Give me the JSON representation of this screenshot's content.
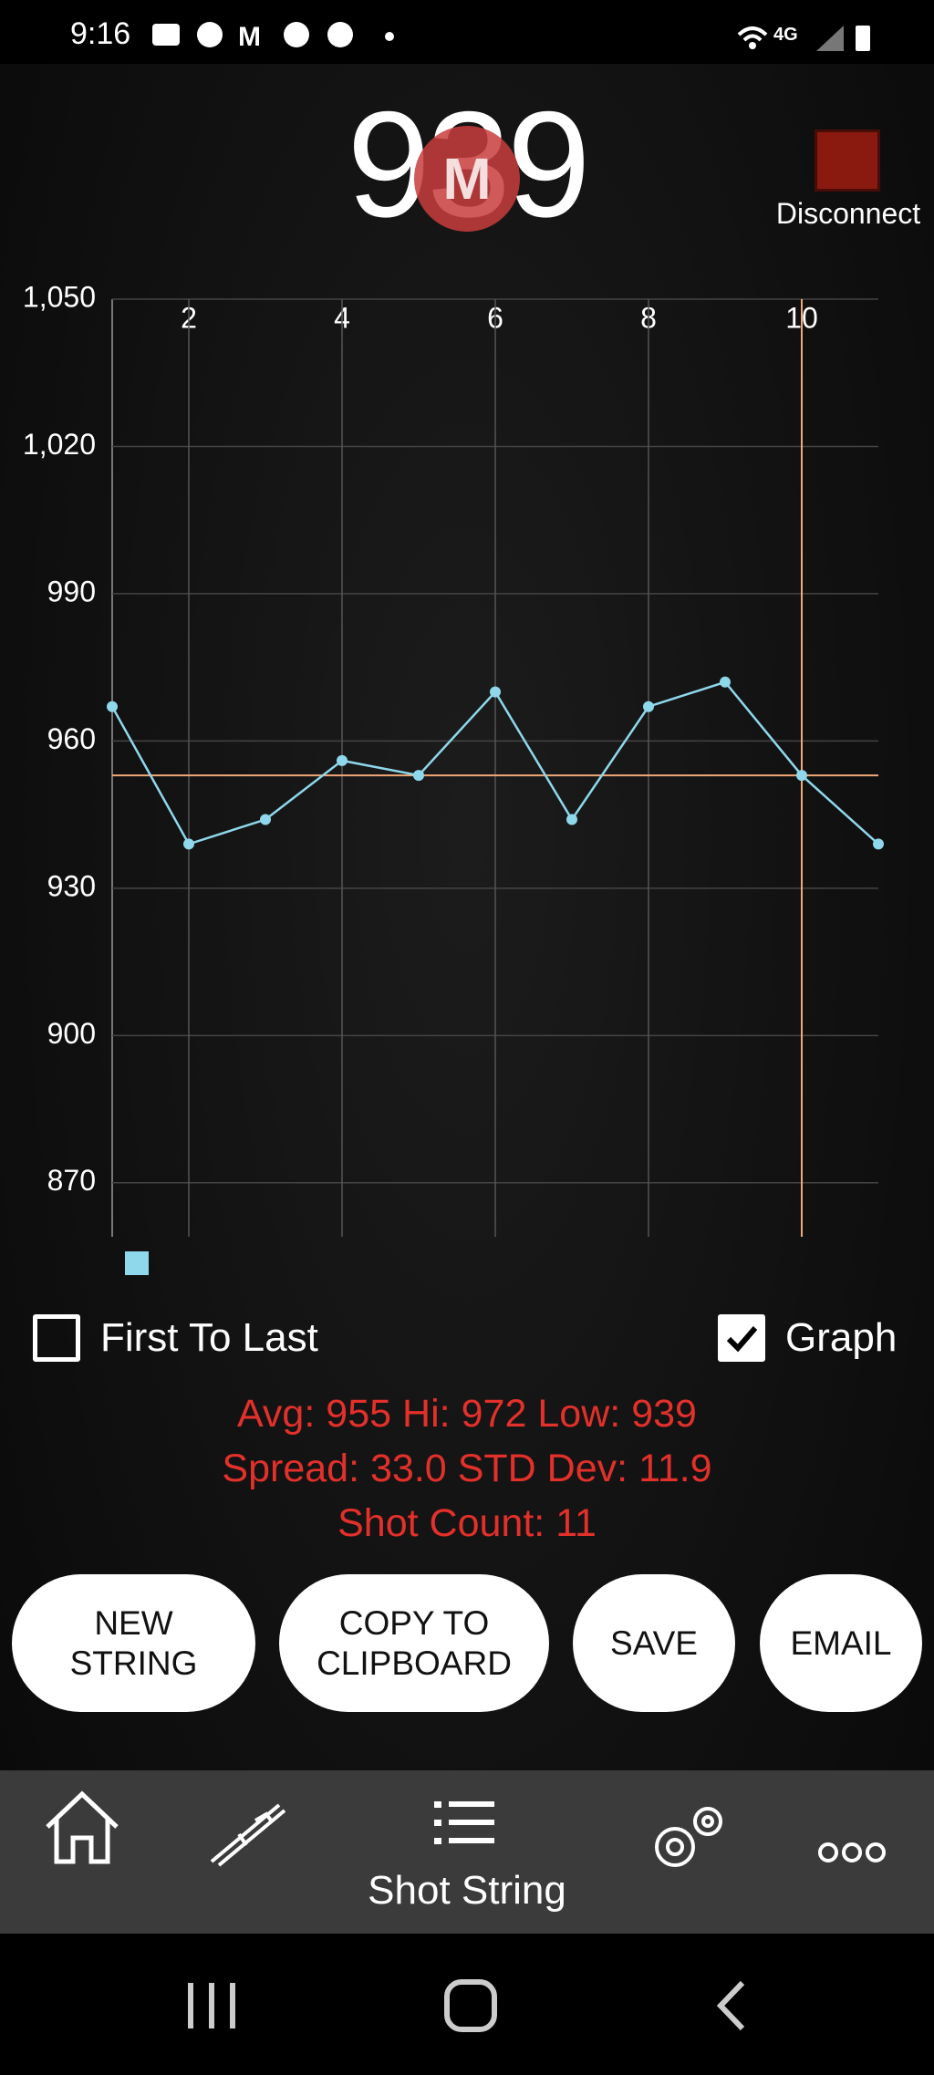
{
  "status_bar": {
    "time": "9:16"
  },
  "header": {
    "reading": "939",
    "status": "Disconnect"
  },
  "chart_data": {
    "type": "line",
    "x": [
      1,
      2,
      3,
      4,
      5,
      6,
      7,
      8,
      9,
      10,
      11
    ],
    "series": [
      {
        "color": "#8fd8ec",
        "values": [
          967,
          939,
          944,
          956,
          953,
          970,
          944,
          967,
          972,
          953,
          939
        ]
      }
    ],
    "xlim": [
      1,
      11
    ],
    "xticks": [
      2,
      4,
      6,
      8,
      10
    ],
    "ylim": [
      859,
      1050
    ],
    "yticks": [
      870,
      900,
      930,
      960,
      990,
      {
        "value": 1020,
        "label": "1,020"
      },
      {
        "value": 1050,
        "label": "1,050"
      }
    ],
    "grid": true,
    "reference_line": 953,
    "reference_color": "#f0a878",
    "cursor_x": 10
  },
  "options": [
    {
      "label": "First To Last",
      "checked": false
    },
    {
      "label": "Graph",
      "checked": true
    }
  ],
  "stats": [
    [
      {
        "label": "Avg:",
        "value": "955"
      },
      {
        "label": "Hi:",
        "value": "972"
      },
      {
        "label": "Low:",
        "value": "939"
      }
    ],
    [
      {
        "label": "Spread:",
        "value": "33.0"
      },
      {
        "label": "STD Dev:",
        "value": "11.9"
      }
    ],
    [
      {
        "label": "Shot Count:",
        "value": "11"
      }
    ]
  ],
  "buttons": [
    "NEW STRING",
    "COPY TO CLIPBOARD",
    "SAVE",
    "EMAIL"
  ],
  "nav": {
    "active": "Shot String"
  }
}
